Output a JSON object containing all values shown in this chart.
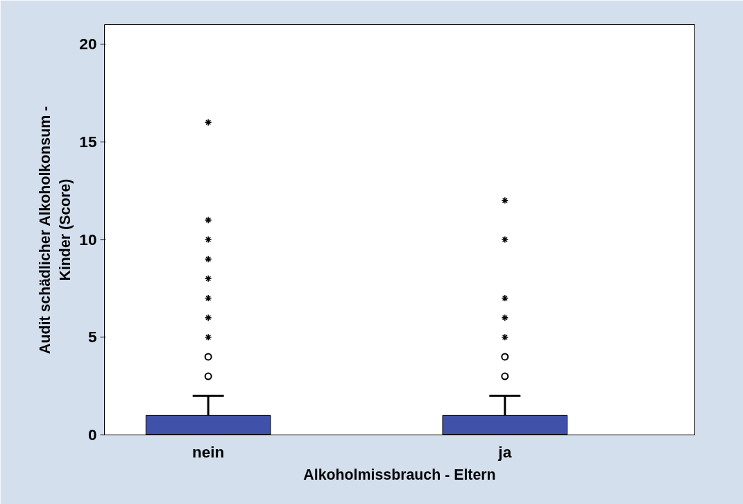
{
  "chart_data": {
    "type": "box",
    "xlabel": "Alkoholmissbrauch - Eltern",
    "ylabel": "Audit schädlicher Alkoholkonsum -\nKinder (Score)",
    "categories": [
      "nein",
      "ja"
    ],
    "series": [
      {
        "color": "#3f51a8",
        "boxes": [
          {
            "low": 0,
            "q1": 0,
            "median": 0,
            "q3": 1,
            "high": 2,
            "outliers": [
              3,
              4,
              5,
              6,
              7,
              8,
              9,
              10,
              11,
              16
            ]
          },
          {
            "low": 0,
            "q1": 0,
            "median": 0,
            "q3": 1,
            "high": 2,
            "outliers": [
              3,
              4,
              5,
              6,
              7,
              10,
              12
            ]
          }
        ]
      }
    ],
    "ylim": [
      0,
      21
    ],
    "yticks": [
      0,
      5,
      10,
      15,
      20
    ],
    "grid": false
  }
}
